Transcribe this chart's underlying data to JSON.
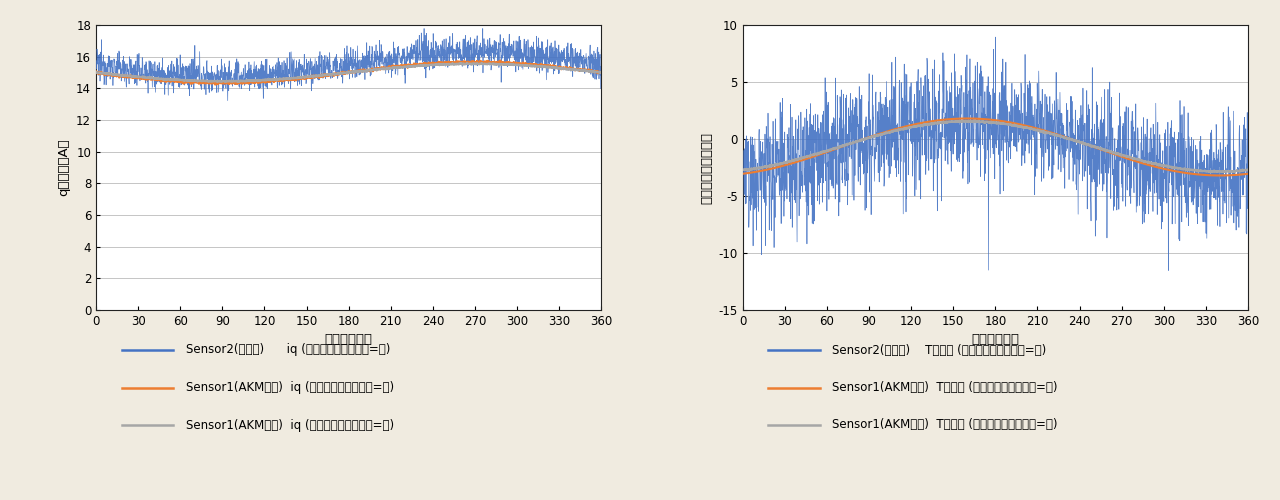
{
  "background_color": "#f0ebe0",
  "plot_bg_color": "#ffffff",
  "left_chart": {
    "ylabel": "q軸電流（A）",
    "xlabel": "電気角（度）",
    "ylim": [
      0,
      18
    ],
    "xlim": [
      0,
      360
    ],
    "yticks": [
      0,
      2,
      4,
      6,
      8,
      10,
      12,
      14,
      16,
      18
    ],
    "xticks": [
      0,
      30,
      60,
      90,
      120,
      150,
      180,
      210,
      240,
      270,
      300,
      330,
      360
    ],
    "legend": [
      "Sensor2(他社品)      iq (電流センサーノイズ=有)",
      "Sensor1(AKM製品)  iq (電流センサーノイズ=有)",
      "Sensor1(AKM製品)  iq (電流センサーノイズ=無)"
    ],
    "line_colors": [
      "#4472c4",
      "#ed7d31",
      "#a6a6a6"
    ]
  },
  "right_chart": {
    "ylabel": "トルク誤差率（％）",
    "xlabel": "電気角（度）",
    "ylim": [
      -15,
      10
    ],
    "xlim": [
      0,
      360
    ],
    "yticks": [
      -15,
      -10,
      -5,
      0,
      5,
      10
    ],
    "xticks": [
      0,
      30,
      60,
      90,
      120,
      150,
      180,
      210,
      240,
      270,
      300,
      330,
      360
    ],
    "legend": [
      "Sensor2(他社品)    T誤差率 (電流センサーノイズ=有)",
      "Sensor1(AKM製品)  T誤差率 (電流センサーノイズ=有)",
      "Sensor1(AKM製品)  T誤差率 (電流センサーノイズ=無)"
    ],
    "line_colors": [
      "#4472c4",
      "#ed7d31",
      "#a6a6a6"
    ]
  }
}
